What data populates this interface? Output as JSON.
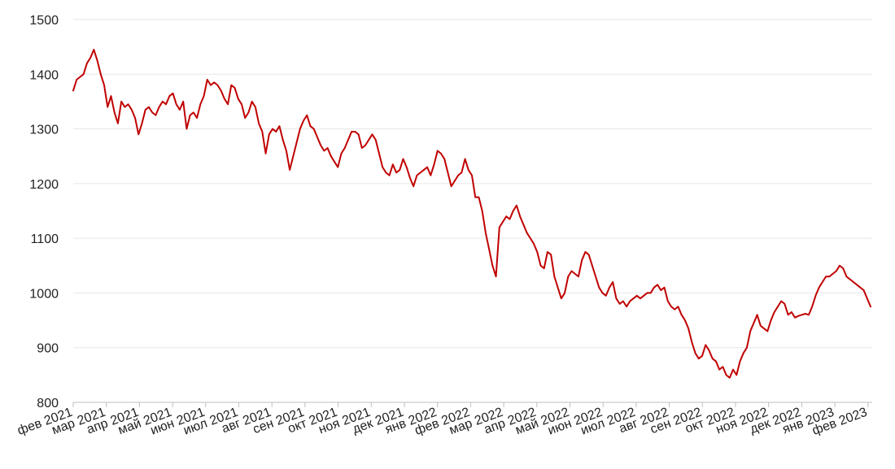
{
  "chart_data": {
    "type": "line",
    "title": "",
    "xlabel": "",
    "ylabel": "",
    "ylim": [
      800,
      1500
    ],
    "y_ticks": [
      800,
      900,
      1000,
      1100,
      1200,
      1300,
      1400,
      1500
    ],
    "x_tick_labels": [
      "фев 2021",
      "мар 2021",
      "апр 2021",
      "май 2021",
      "июн 2021",
      "июл 2021",
      "авг 2021",
      "сен 2021",
      "окт 2021",
      "ноя 2021",
      "дек 2021",
      "янв 2022",
      "фев 2022",
      "мар 2022",
      "апр 2022",
      "май 2022",
      "июн 2022",
      "июл 2022",
      "авг 2022",
      "сен 2022",
      "окт 2022",
      "ноя 2022",
      "дек 2022",
      "янв 2023",
      "фев 2023"
    ],
    "grid": true,
    "legend": "none",
    "line_color": "#c00000",
    "series": [
      {
        "values": [
          1370,
          1390,
          1395,
          1400,
          1420,
          1430,
          1445,
          1425,
          1400,
          1380,
          1340,
          1360,
          1330,
          1310,
          1350,
          1340,
          1345,
          1335,
          1320,
          1290,
          1310,
          1335,
          1340,
          1330,
          1325,
          1340,
          1350,
          1345,
          1360,
          1365,
          1345,
          1335,
          1350,
          1300,
          1325,
          1330,
          1320,
          1345,
          1360,
          1390,
          1380,
          1385,
          1380,
          1370,
          1355,
          1345,
          1380,
          1375,
          1355,
          1345,
          1320,
          1330,
          1350,
          1340,
          1310,
          1295,
          1255,
          1290,
          1300,
          1295,
          1305,
          1280,
          1260,
          1225,
          1250,
          1275,
          1300,
          1315,
          1325,
          1305,
          1300,
          1285,
          1270,
          1260,
          1265,
          1250,
          1240,
          1230,
          1255,
          1265,
          1280,
          1295,
          1295,
          1290,
          1265,
          1270,
          1280,
          1290,
          1280,
          1255,
          1230,
          1220,
          1215,
          1235,
          1220,
          1225,
          1245,
          1230,
          1210,
          1195,
          1215,
          1220,
          1225,
          1230,
          1215,
          1235,
          1260,
          1255,
          1245,
          1220,
          1195,
          1205,
          1215,
          1220,
          1245,
          1225,
          1215,
          1175,
          1175,
          1150,
          1110,
          1080,
          1050,
          1030,
          1120,
          1130,
          1140,
          1135,
          1150,
          1160,
          1140,
          1125,
          1110,
          1100,
          1090,
          1075,
          1050,
          1045,
          1075,
          1070,
          1030,
          1010,
          990,
          1000,
          1030,
          1040,
          1035,
          1030,
          1060,
          1075,
          1070,
          1050,
          1030,
          1010,
          1000,
          995,
          1010,
          1020,
          990,
          980,
          985,
          975,
          985,
          990,
          995,
          990,
          995,
          1000,
          1000,
          1010,
          1015,
          1005,
          1010,
          985,
          975,
          970,
          975,
          960,
          950,
          935,
          910,
          890,
          880,
          885,
          905,
          895,
          880,
          875,
          860,
          865,
          850,
          845,
          860,
          850,
          875,
          890,
          900,
          930,
          945,
          960,
          940,
          935,
          930,
          950,
          965,
          975,
          985,
          980,
          960,
          965,
          955,
          958,
          960,
          962,
          960,
          975,
          995,
          1010,
          1020,
          1030,
          1030,
          1035,
          1040,
          1050,
          1045,
          1030,
          1025,
          1020,
          1015,
          1010,
          1005,
          990,
          975
        ],
        "x_start": "2021-02-01",
        "x_end": "2023-02-20"
      }
    ]
  }
}
